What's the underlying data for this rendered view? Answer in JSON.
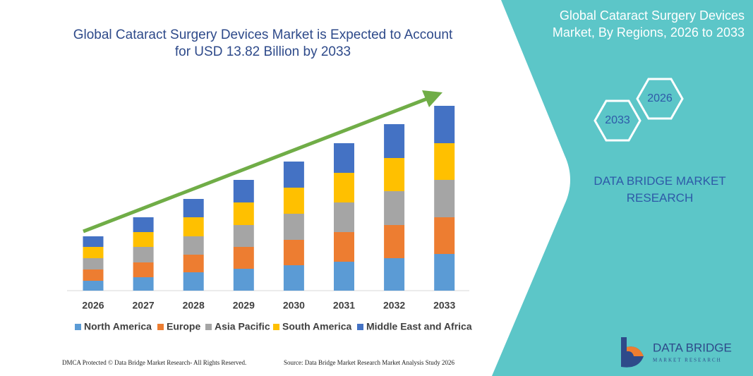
{
  "chart_data": {
    "type": "stacked-bar",
    "title": "Global Cataract Surgery Devices Market is Expected to Account for USD 13.82 Billion by 2033",
    "categories": [
      "2026",
      "2027",
      "2028",
      "2029",
      "2030",
      "2031",
      "2032",
      "2033"
    ],
    "series": [
      {
        "name": "North America",
        "color": "#5b9bd5",
        "values": [
          14,
          19,
          26,
          31,
          36,
          41,
          46,
          52
        ]
      },
      {
        "name": "Europe",
        "color": "#ed7d31",
        "values": [
          16,
          21,
          25,
          31,
          36,
          42,
          47,
          52
        ]
      },
      {
        "name": "Asia Pacific",
        "color": "#a5a5a5",
        "values": [
          16,
          22,
          26,
          31,
          37,
          42,
          48,
          53
        ]
      },
      {
        "name": "South America",
        "color": "#ffc000",
        "values": [
          16,
          21,
          27,
          32,
          37,
          42,
          47,
          52
        ]
      },
      {
        "name": "Middle East and Africa",
        "color": "#4472c4",
        "values": [
          15,
          21,
          26,
          32,
          37,
          42,
          48,
          53
        ]
      }
    ],
    "ylim": [
      0,
      270
    ]
  },
  "side_panel": {
    "title": "Global Cataract Surgery Devices Market, By Regions, 2026 to 2033",
    "hexagons": [
      "2026",
      "2033"
    ],
    "brand": "DATA BRIDGE MARKET RESEARCH"
  },
  "logo": {
    "name": "DATA BRIDGE",
    "tagline": "MARKET RESEARCH"
  },
  "footer": {
    "left": "DMCA Protected © Data Bridge Market Research- All Rights Reserved.",
    "right": "Source: Data Bridge Market Research Market Analysis Study 2026"
  }
}
